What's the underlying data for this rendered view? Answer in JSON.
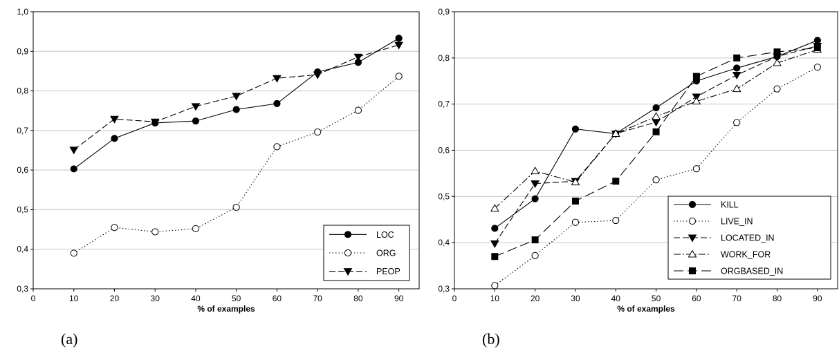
{
  "chart_data": [
    {
      "type": "line",
      "panel_label": "(a)",
      "xlabel": "% of examples",
      "ylabel": "",
      "xlim": [
        0,
        95
      ],
      "ylim": [
        0.3,
        1.0
      ],
      "xticks": [
        "0",
        "10",
        "20",
        "30",
        "40",
        "50",
        "60",
        "70",
        "80",
        "90"
      ],
      "yticks": [
        "0,3",
        "0,4",
        "0,5",
        "0,6",
        "0,7",
        "0,8",
        "0,9",
        "1,0"
      ],
      "grid": "horizontal",
      "legend_position": "bottom-right",
      "x": [
        10,
        20,
        30,
        40,
        50,
        60,
        70,
        80,
        90
      ],
      "series": [
        {
          "name": "LOC",
          "marker": "circle-filled",
          "dash": "solid",
          "values": [
            0.603,
            0.68,
            0.719,
            0.724,
            0.753,
            0.768,
            0.848,
            0.872,
            0.933
          ]
        },
        {
          "name": "ORG",
          "marker": "circle-open",
          "dash": "dotted",
          "values": [
            0.39,
            0.455,
            0.444,
            0.452,
            0.506,
            0.659,
            0.696,
            0.751,
            0.837
          ]
        },
        {
          "name": "PEOP",
          "marker": "triangle-filled",
          "dash": "dashed",
          "values": [
            0.651,
            0.729,
            0.722,
            0.761,
            0.787,
            0.832,
            0.841,
            0.886,
            0.916
          ]
        }
      ]
    },
    {
      "type": "line",
      "panel_label": "(b)",
      "xlabel": "% of examples",
      "ylabel": "",
      "xlim": [
        0,
        95
      ],
      "ylim": [
        0.3,
        0.9
      ],
      "xticks": [
        "0",
        "10",
        "20",
        "30",
        "40",
        "50",
        "60",
        "70",
        "80",
        "90"
      ],
      "yticks": [
        "0,3",
        "0,4",
        "0,5",
        "0,6",
        "0,7",
        "0,8",
        "0,9"
      ],
      "grid": "horizontal",
      "legend_position": "bottom-right",
      "x": [
        10,
        20,
        30,
        40,
        50,
        60,
        70,
        80,
        90
      ],
      "series": [
        {
          "name": "KILL",
          "marker": "circle-filled",
          "dash": "solid",
          "values": [
            0.431,
            0.495,
            0.646,
            0.636,
            0.692,
            0.75,
            0.778,
            0.803,
            0.838
          ]
        },
        {
          "name": "LIVE_IN",
          "marker": "circle-open",
          "dash": "dotted",
          "values": [
            0.307,
            0.372,
            0.444,
            0.448,
            0.536,
            0.56,
            0.66,
            0.733,
            0.78
          ]
        },
        {
          "name": "LOCATED_IN",
          "marker": "triangle-filled",
          "dash": "dashed",
          "values": [
            0.398,
            0.528,
            0.533,
            0.636,
            0.661,
            0.716,
            0.763,
            0.803,
            0.826
          ]
        },
        {
          "name": "WORK_FOR",
          "marker": "triangle-open",
          "dash": "dashdot",
          "values": [
            0.474,
            0.555,
            0.531,
            0.636,
            0.673,
            0.706,
            0.733,
            0.789,
            0.818
          ]
        },
        {
          "name": "ORGBASED_IN",
          "marker": "square-filled",
          "dash": "longdash",
          "values": [
            0.37,
            0.406,
            0.49,
            0.533,
            0.64,
            0.76,
            0.8,
            0.813,
            0.822
          ]
        }
      ]
    }
  ]
}
